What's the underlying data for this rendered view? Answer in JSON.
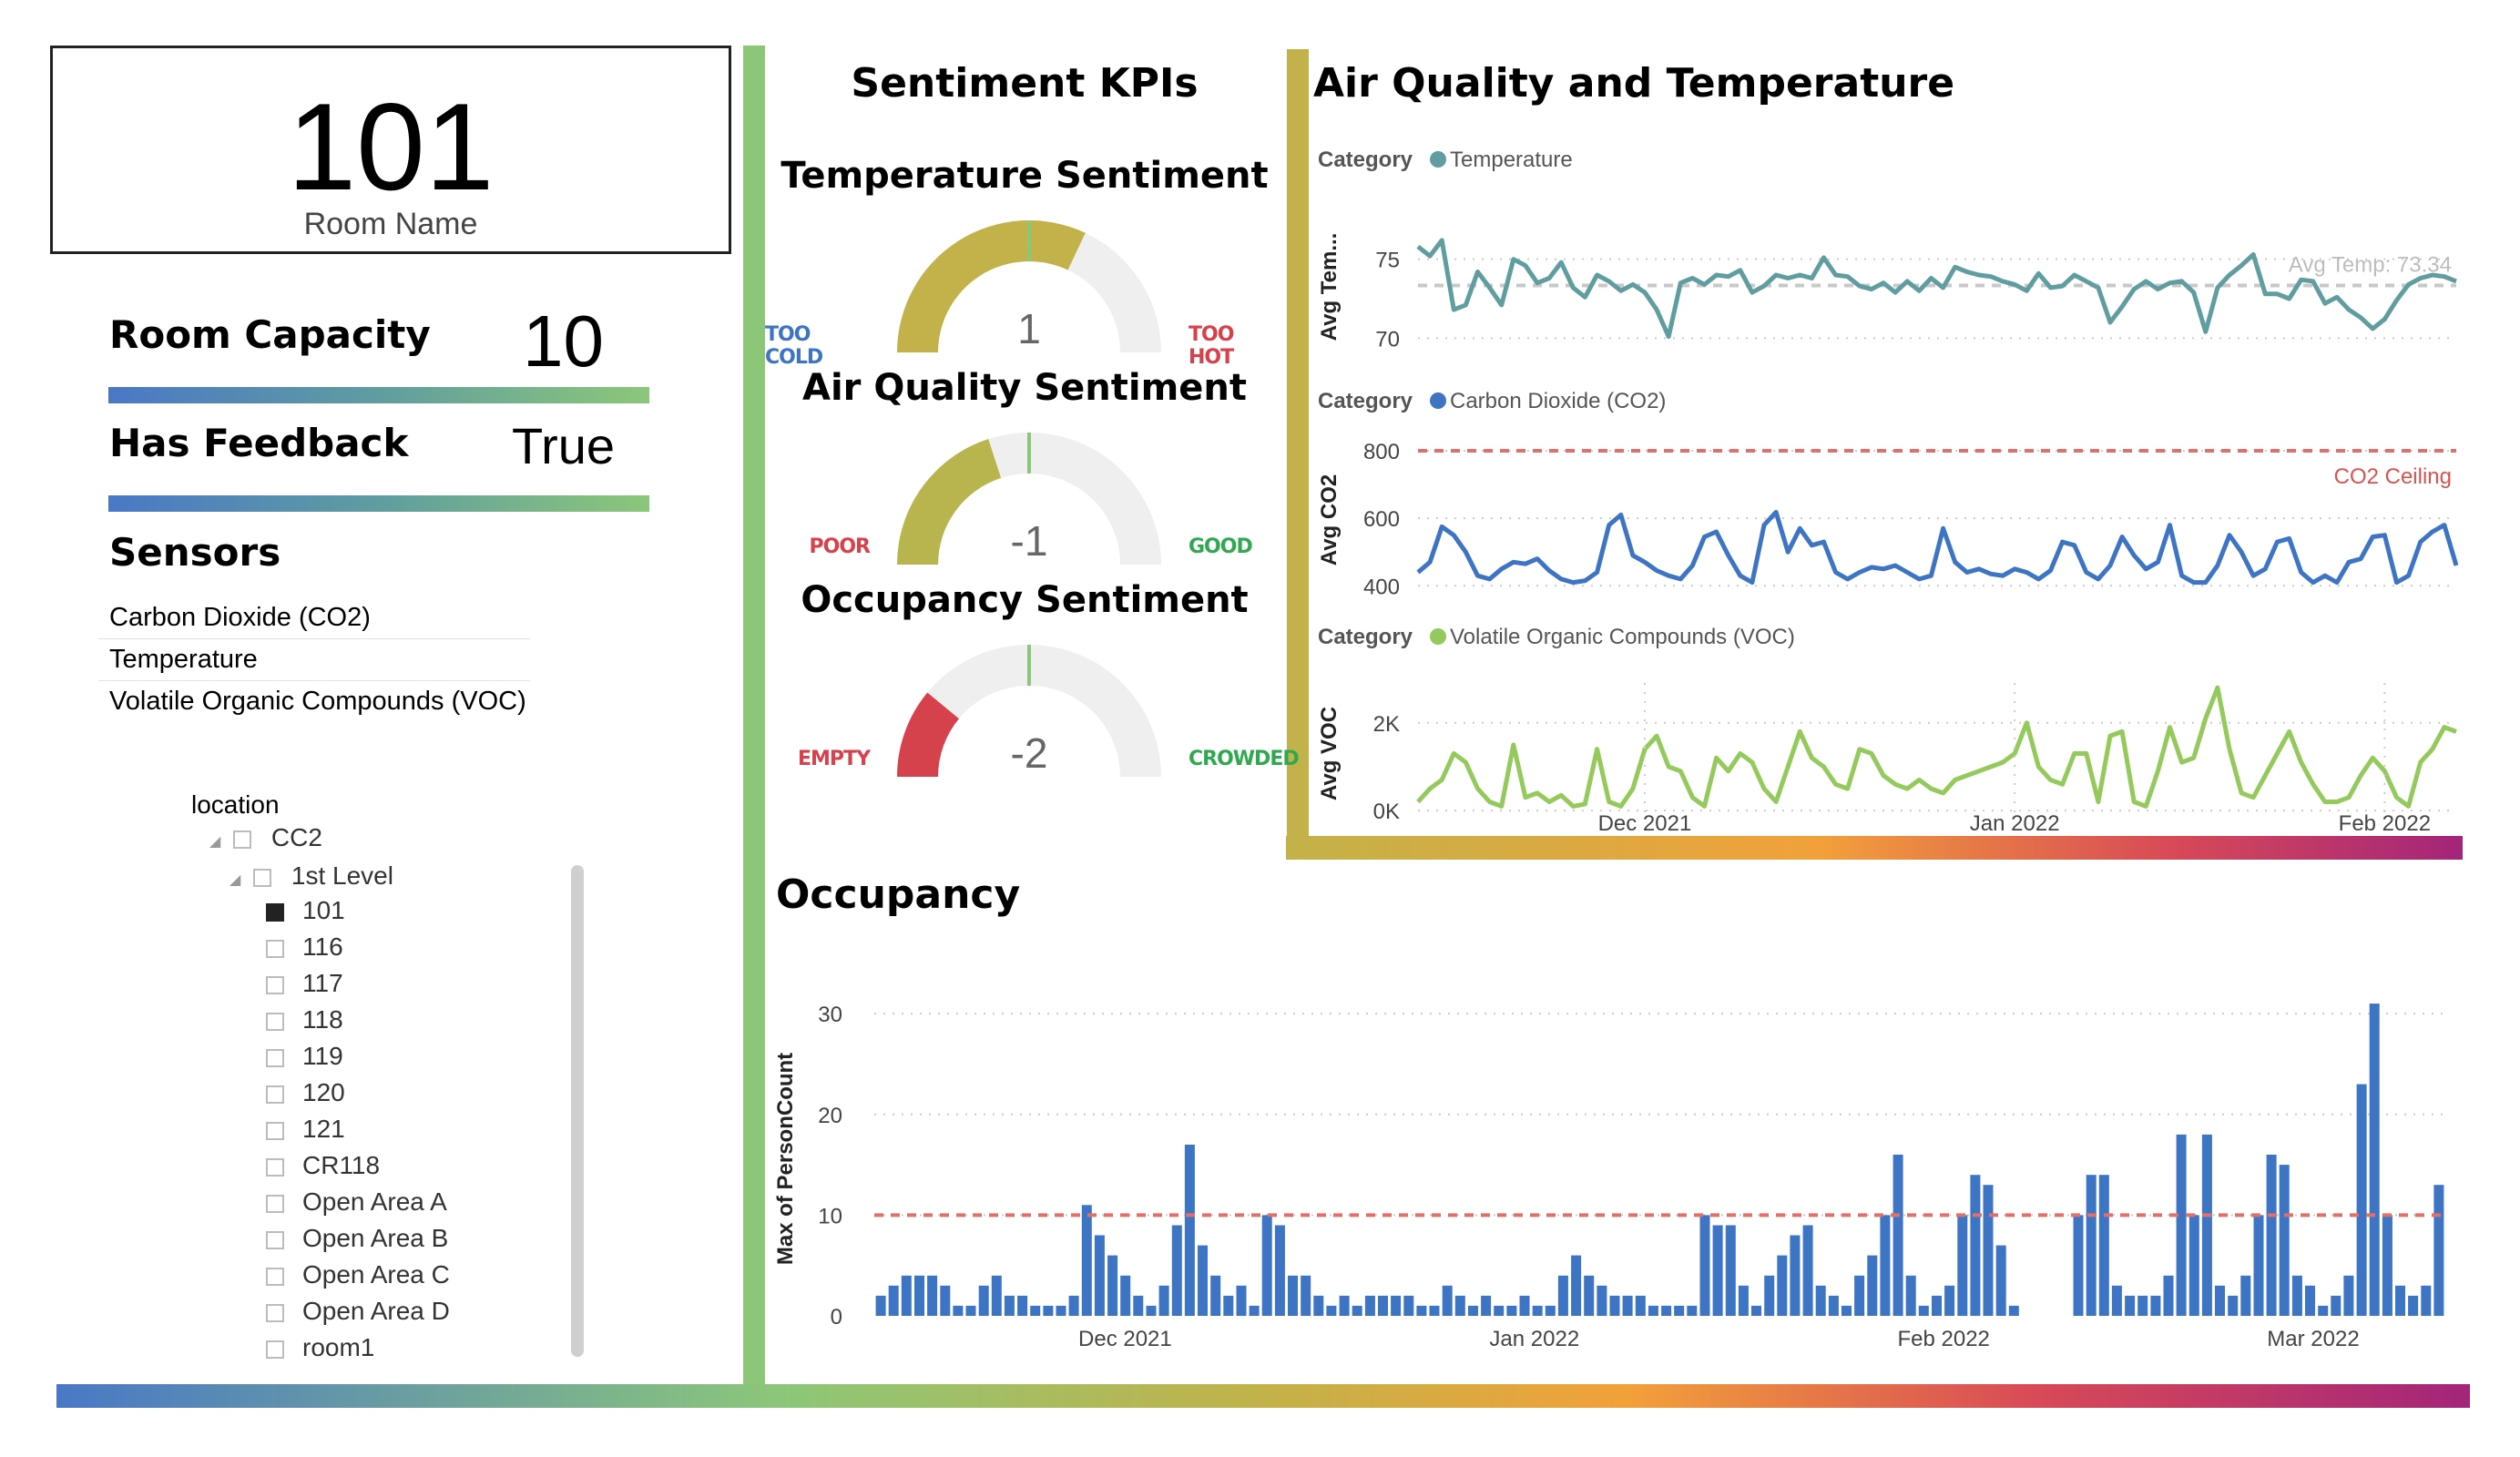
{
  "room": {
    "name": "101",
    "name_label": "Room Name"
  },
  "capacity": {
    "label": "Room Capacity",
    "value": "10"
  },
  "feedback": {
    "label": "Has Feedback",
    "value": "True"
  },
  "sensors": {
    "title": "Sensors",
    "items": [
      "Carbon Dioxide (CO2)",
      "Temperature",
      "Volatile Organic Compounds (VOC)"
    ]
  },
  "location_tree": {
    "title": "location",
    "root": "CC2",
    "level": "1st Level",
    "items": [
      "101",
      "116",
      "117",
      "118",
      "119",
      "120",
      "121",
      "CR118",
      "Open Area A",
      "Open Area B",
      "Open Area C",
      "Open Area D",
      "room1"
    ],
    "selected": "101"
  },
  "colors": {
    "accent_green": "#8cc779",
    "accent_olive": "#c2b249",
    "temperature": "#5f9da0",
    "co2": "#3d74c4",
    "voc": "#94c95c",
    "bars": "#3d74c4",
    "reference": "#e0706a",
    "gauge_fill": "#c2b249",
    "gauge_bad": "#d6424b",
    "gauge_empty": "#efefef"
  },
  "sentiment": {
    "title": "Sentiment KPIs",
    "gauges": [
      {
        "title": "Temperature Sentiment",
        "value": "1",
        "fill": 0.64,
        "color": "#c2b249",
        "min_label": "TOO COLD",
        "max_label": "TOO HOT",
        "min_color": "#3d74c4",
        "max_color": "#d6424b"
      },
      {
        "title": "Air Quality Sentiment",
        "value": "-1",
        "fill": 0.4,
        "color": "#b8b54e",
        "min_label": "POOR",
        "max_label": "GOOD",
        "min_color": "#d6424b",
        "max_color": "#2fa84f"
      },
      {
        "title": "Occupancy Sentiment",
        "value": "-2",
        "fill": 0.22,
        "color": "#d6424b",
        "min_label": "EMPTY",
        "max_label": "CROWDED",
        "min_color": "#d6424b",
        "max_color": "#2fa84f"
      }
    ]
  },
  "air_quality": {
    "title": "Air Quality and Temperature",
    "category_label": "Category",
    "x_ticks": [
      "Dec 2021",
      "Jan 2022",
      "Feb 2022"
    ]
  },
  "chart_data": [
    {
      "type": "line",
      "legend": "Temperature",
      "ylabel": "Avg Tem...",
      "ylim": [
        69.5,
        77
      ],
      "y_ticks": [
        70,
        75
      ],
      "reference": {
        "label": "Avg Temp: 73.34",
        "value": 73.34
      },
      "x": [
        "2021-11-12",
        "2021-11-13",
        "2021-11-14",
        "2021-11-15",
        "2021-11-16",
        "2021-11-17",
        "2021-11-18",
        "2021-11-19",
        "2021-11-20",
        "2021-11-21",
        "2021-11-22",
        "2021-11-23",
        "2021-11-24",
        "2021-11-25",
        "2021-11-26",
        "2021-11-27",
        "2021-11-28",
        "2021-11-29",
        "2021-11-30",
        "2021-12-01",
        "2021-12-02",
        "2021-12-03",
        "2021-12-04",
        "2021-12-05",
        "2021-12-06",
        "2021-12-07",
        "2021-12-08",
        "2021-12-09",
        "2021-12-10",
        "2021-12-11",
        "2021-12-12",
        "2021-12-13",
        "2021-12-14",
        "2021-12-15",
        "2021-12-16",
        "2021-12-17",
        "2021-12-18",
        "2021-12-19",
        "2021-12-20",
        "2021-12-21",
        "2021-12-22",
        "2021-12-23",
        "2021-12-24",
        "2021-12-25",
        "2021-12-26",
        "2021-12-27",
        "2021-12-28",
        "2021-12-29",
        "2021-12-30",
        "2021-12-31",
        "2022-01-01",
        "2022-01-02",
        "2022-01-03",
        "2022-01-04",
        "2022-01-05",
        "2022-01-06",
        "2022-01-07",
        "2022-01-08",
        "2022-01-09",
        "2022-01-10",
        "2022-01-11",
        "2022-01-12",
        "2022-01-13",
        "2022-01-14",
        "2022-01-15",
        "2022-01-16",
        "2022-01-17",
        "2022-01-18",
        "2022-01-19",
        "2022-01-20",
        "2022-01-21",
        "2022-01-22",
        "2022-01-23",
        "2022-01-24",
        "2022-01-25",
        "2022-01-26",
        "2022-01-27",
        "2022-01-28",
        "2022-01-29",
        "2022-01-30",
        "2022-01-31",
        "2022-02-01",
        "2022-02-02",
        "2022-02-03",
        "2022-02-04",
        "2022-02-05",
        "2022-02-06",
        "2022-02-07"
      ],
      "values": [
        75.8,
        75.2,
        76.2,
        71.8,
        72.1,
        74.2,
        73.2,
        72.1,
        75.0,
        74.6,
        73.5,
        73.8,
        74.8,
        73.2,
        72.6,
        74.0,
        73.6,
        73.0,
        73.4,
        72.9,
        71.8,
        70.1,
        73.5,
        73.8,
        73.4,
        74.0,
        73.9,
        74.3,
        72.9,
        73.3,
        74.0,
        73.8,
        74.0,
        73.8,
        75.1,
        74.0,
        73.9,
        73.3,
        73.1,
        73.5,
        72.9,
        73.6,
        73.0,
        73.8,
        73.2,
        74.5,
        74.2,
        74.0,
        73.9,
        73.6,
        73.4,
        73.0,
        74.1,
        73.2,
        73.3,
        74.0,
        73.6,
        73.2,
        71.0,
        72.0,
        73.1,
        73.6,
        73.1,
        73.5,
        73.6,
        72.9,
        70.4,
        73.2,
        74.0,
        74.6,
        75.3,
        72.8,
        72.8,
        72.5,
        73.7,
        73.6,
        72.2,
        72.6,
        71.8,
        71.3,
        70.6,
        71.2,
        72.4,
        73.4,
        73.8,
        74.0,
        73.9,
        73.6
      ]
    },
    {
      "type": "line",
      "legend": "Carbon Dioxide (CO2)",
      "ylabel": "Avg CO2",
      "ylim": [
        390,
        800
      ],
      "y_ticks": [
        400,
        600,
        800
      ],
      "reference": {
        "label": "CO2 Ceiling",
        "value": 800
      },
      "x": [
        "2021-11-12",
        "2021-11-13",
        "2021-11-14",
        "2021-11-15",
        "2021-11-16",
        "2021-11-17",
        "2021-11-18",
        "2021-11-19",
        "2021-11-20",
        "2021-11-21",
        "2021-11-22",
        "2021-11-23",
        "2021-11-24",
        "2021-11-25",
        "2021-11-26",
        "2021-11-27",
        "2021-11-28",
        "2021-11-29",
        "2021-11-30",
        "2021-12-01",
        "2021-12-02",
        "2021-12-03",
        "2021-12-04",
        "2021-12-05",
        "2021-12-06",
        "2021-12-07",
        "2021-12-08",
        "2021-12-09",
        "2021-12-10",
        "2021-12-11",
        "2021-12-12",
        "2021-12-13",
        "2021-12-14",
        "2021-12-15",
        "2021-12-16",
        "2021-12-17",
        "2021-12-18",
        "2021-12-19",
        "2021-12-20",
        "2021-12-21",
        "2021-12-22",
        "2021-12-23",
        "2021-12-24",
        "2021-12-25",
        "2021-12-26",
        "2021-12-27",
        "2021-12-28",
        "2021-12-29",
        "2021-12-30",
        "2021-12-31",
        "2022-01-01",
        "2022-01-02",
        "2022-01-03",
        "2022-01-04",
        "2022-01-05",
        "2022-01-06",
        "2022-01-07",
        "2022-01-08",
        "2022-01-09",
        "2022-01-10",
        "2022-01-11",
        "2022-01-12",
        "2022-01-13",
        "2022-01-14",
        "2022-01-15",
        "2022-01-16",
        "2022-01-17",
        "2022-01-18",
        "2022-01-19",
        "2022-01-20",
        "2022-01-21",
        "2022-01-22",
        "2022-01-23",
        "2022-01-24",
        "2022-01-25",
        "2022-01-26",
        "2022-01-27",
        "2022-01-28",
        "2022-01-29",
        "2022-01-30",
        "2022-01-31",
        "2022-02-01",
        "2022-02-02",
        "2022-02-03",
        "2022-02-04",
        "2022-02-05",
        "2022-02-06",
        "2022-02-07"
      ],
      "values": [
        440,
        470,
        575,
        550,
        500,
        430,
        420,
        450,
        470,
        465,
        480,
        445,
        420,
        410,
        415,
        440,
        580,
        610,
        490,
        470,
        445,
        430,
        420,
        460,
        545,
        560,
        490,
        430,
        410,
        580,
        618,
        500,
        570,
        520,
        530,
        440,
        420,
        440,
        455,
        450,
        460,
        440,
        420,
        430,
        570,
        470,
        440,
        450,
        435,
        430,
        450,
        440,
        420,
        445,
        530,
        520,
        440,
        420,
        460,
        545,
        490,
        450,
        470,
        580,
        430,
        410,
        410,
        460,
        550,
        500,
        430,
        450,
        530,
        540,
        440,
        410,
        430,
        410,
        470,
        480,
        545,
        550,
        410,
        430,
        530,
        560,
        580,
        460
      ]
    },
    {
      "type": "line",
      "legend": "Volatile Organic Compounds (VOC)",
      "ylabel": "Avg VOC",
      "ylim": [
        -100,
        2700
      ],
      "y_ticks": [
        0,
        2000
      ],
      "y_tick_labels": [
        "0K",
        "2K"
      ],
      "x": [
        "2021-11-12",
        "2021-11-13",
        "2021-11-14",
        "2021-11-15",
        "2021-11-16",
        "2021-11-17",
        "2021-11-18",
        "2021-11-19",
        "2021-11-20",
        "2021-11-21",
        "2021-11-22",
        "2021-11-23",
        "2021-11-24",
        "2021-11-25",
        "2021-11-26",
        "2021-11-27",
        "2021-11-28",
        "2021-11-29",
        "2021-11-30",
        "2021-12-01",
        "2021-12-02",
        "2021-12-03",
        "2021-12-04",
        "2021-12-05",
        "2021-12-06",
        "2021-12-07",
        "2021-12-08",
        "2021-12-09",
        "2021-12-10",
        "2021-12-11",
        "2021-12-12",
        "2021-12-13",
        "2021-12-14",
        "2021-12-15",
        "2021-12-16",
        "2021-12-17",
        "2021-12-18",
        "2021-12-19",
        "2021-12-20",
        "2021-12-21",
        "2021-12-22",
        "2021-12-23",
        "2021-12-24",
        "2021-12-25",
        "2021-12-26",
        "2021-12-27",
        "2021-12-28",
        "2021-12-29",
        "2021-12-30",
        "2021-12-31",
        "2022-01-01",
        "2022-01-02",
        "2022-01-03",
        "2022-01-04",
        "2022-01-05",
        "2022-01-06",
        "2022-01-07",
        "2022-01-08",
        "2022-01-09",
        "2022-01-10",
        "2022-01-11",
        "2022-01-12",
        "2022-01-13",
        "2022-01-14",
        "2022-01-15",
        "2022-01-16",
        "2022-01-17",
        "2022-01-18",
        "2022-01-19",
        "2022-01-20",
        "2022-01-21",
        "2022-01-22",
        "2022-01-23",
        "2022-01-24",
        "2022-01-25",
        "2022-01-26",
        "2022-01-27",
        "2022-01-28",
        "2022-01-29",
        "2022-01-30",
        "2022-01-31",
        "2022-02-01",
        "2022-02-02",
        "2022-02-03",
        "2022-02-04",
        "2022-02-05",
        "2022-02-06",
        "2022-02-07"
      ],
      "values": [
        200,
        500,
        700,
        1300,
        1100,
        500,
        200,
        100,
        1500,
        300,
        400,
        200,
        350,
        100,
        150,
        1400,
        200,
        100,
        500,
        1400,
        1700,
        1000,
        900,
        300,
        100,
        1200,
        900,
        1300,
        1100,
        500,
        200,
        1000,
        1800,
        1200,
        1000,
        600,
        500,
        1400,
        1300,
        800,
        600,
        500,
        700,
        500,
        400,
        700,
        800,
        900,
        1000,
        1100,
        1300,
        2000,
        1000,
        700,
        600,
        1300,
        1300,
        200,
        1700,
        1800,
        200,
        100,
        900,
        1900,
        1100,
        1200,
        2100,
        2800,
        1400,
        400,
        300,
        800,
        1300,
        1800,
        1100,
        600,
        200,
        200,
        300,
        800,
        1200,
        900,
        300,
        100,
        1100,
        1400,
        1900,
        1800
      ]
    },
    {
      "type": "bar",
      "title": "Occupancy",
      "ylabel": "Max of PersonCount",
      "ylim": [
        0,
        33
      ],
      "y_ticks": [
        0,
        10,
        20,
        30
      ],
      "reference": {
        "value": 10
      },
      "x_ticks": [
        "Dec 2021",
        "Jan 2022",
        "Feb 2022",
        "Mar 2022"
      ],
      "x_start": "2021-11-12",
      "x_end": "2022-03-11",
      "values": [
        2,
        3,
        4,
        4,
        4,
        3,
        1,
        1,
        3,
        4,
        2,
        2,
        1,
        1,
        1,
        2,
        11,
        8,
        6,
        4,
        2,
        1,
        3,
        9,
        17,
        7,
        4,
        2,
        3,
        1,
        10,
        9,
        4,
        4,
        2,
        1,
        2,
        1,
        2,
        2,
        2,
        2,
        1,
        1,
        3,
        2,
        1,
        2,
        1,
        1,
        2,
        1,
        1,
        4,
        6,
        4,
        3,
        2,
        2,
        2,
        1,
        1,
        1,
        1,
        10,
        9,
        9,
        3,
        1,
        4,
        6,
        8,
        9,
        3,
        2,
        1,
        4,
        6,
        10,
        16,
        4,
        1,
        2,
        3,
        10,
        14,
        13,
        7,
        1,
        0,
        0,
        0,
        0,
        10,
        14,
        14,
        3,
        2,
        2,
        2,
        4,
        18,
        10,
        18,
        3,
        2,
        4,
        10,
        16,
        15,
        4,
        3,
        1,
        2,
        4,
        23,
        31,
        10,
        3,
        2,
        3,
        13
      ]
    }
  ]
}
